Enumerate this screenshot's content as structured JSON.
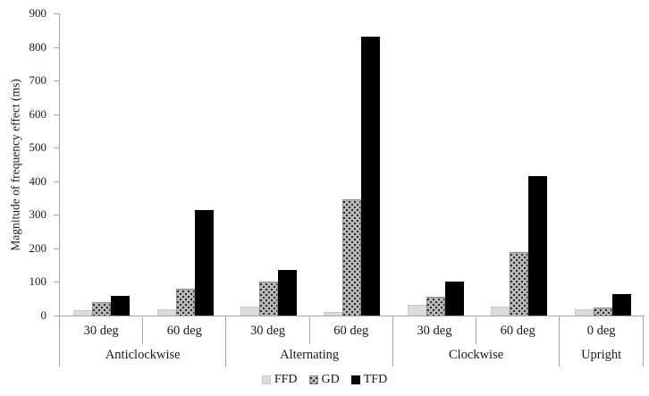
{
  "figure": {
    "background": "#ffffff",
    "axis_color": "#a6a6a6",
    "text_color": "#1a1a1a"
  },
  "chart_data": {
    "type": "bar",
    "title": "",
    "xlabel": "",
    "ylabel": "Magnitude of frequency effect (ms)",
    "ylim": [
      0,
      900
    ],
    "yticks": [
      0,
      100,
      200,
      300,
      400,
      500,
      600,
      700,
      800,
      900
    ],
    "grid": false,
    "legend_position": "bottom-center",
    "series": [
      {
        "name": "FFD",
        "fill": "#dcdcdc",
        "pattern": "solid",
        "border": "#c9c9c9"
      },
      {
        "name": "GD",
        "fill": "#b8b8b8",
        "pattern": "dots",
        "border": "#8c8c8c"
      },
      {
        "name": "TFD",
        "fill": "#000000",
        "pattern": "solid",
        "border": "#000000"
      }
    ],
    "groups": [
      {
        "label": "Anticlockwise",
        "subgroups": [
          {
            "label": "30 deg",
            "values": [
              15,
              40,
              60
            ]
          },
          {
            "label": "60 deg",
            "values": [
              20,
              80,
              315
            ]
          }
        ]
      },
      {
        "label": "Alternating",
        "subgroups": [
          {
            "label": "30 deg",
            "values": [
              28,
              100,
              135
            ]
          },
          {
            "label": "60 deg",
            "values": [
              10,
              345,
              830
            ]
          }
        ]
      },
      {
        "label": "Clockwise",
        "subgroups": [
          {
            "label": "30 deg",
            "values": [
              33,
              55,
              100
            ]
          },
          {
            "label": "60 deg",
            "values": [
              28,
              190,
              415
            ]
          }
        ]
      },
      {
        "label": "Upright",
        "subgroups": [
          {
            "label": "0 deg",
            "values": [
              20,
              25,
              63
            ]
          }
        ]
      }
    ]
  },
  "legend": {
    "items": [
      {
        "label": "FFD"
      },
      {
        "label": "GD"
      },
      {
        "label": "TFD"
      }
    ]
  }
}
